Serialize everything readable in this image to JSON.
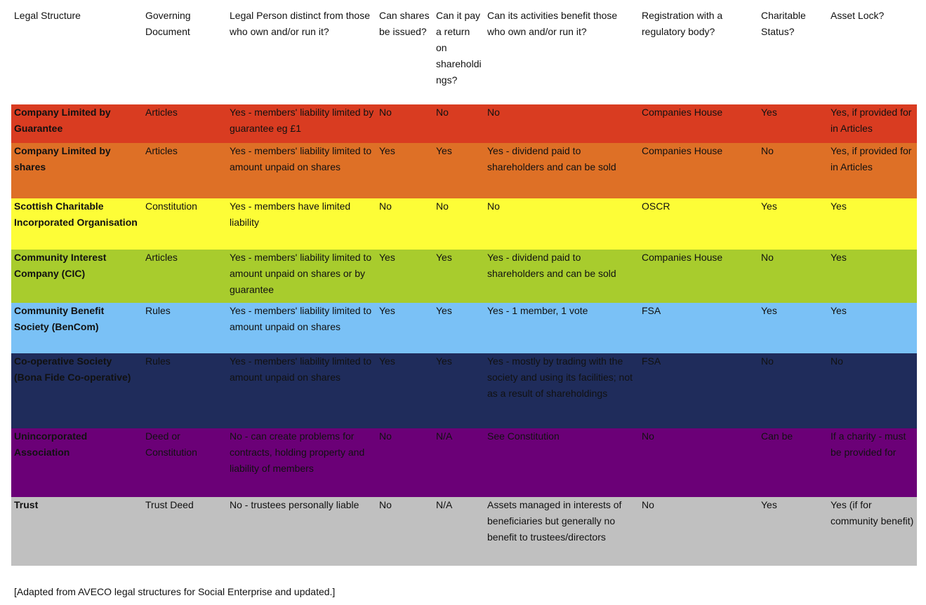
{
  "table": {
    "header": [
      "Legal Structure",
      "Governing Document",
      "Legal Person distinct from those who own and/or run it?",
      "Can shares be issued?",
      "Can it pay a return on shareholdings?",
      "Can its activities benefit those who own and/or run it?",
      "Registration with a regulatory body?",
      "Charitable Status?",
      "Asset Lock?"
    ],
    "rows": [
      [
        "Company Limited by Guarantee",
        "Articles",
        "Yes - members' liability limited by guarantee eg £1",
        "No",
        "No",
        "No",
        "Companies House",
        "Yes",
        "Yes, if provided for in Articles"
      ],
      [
        "Company Limited by shares",
        "Articles",
        "Yes - members' liability limited to amount unpaid on shares",
        "Yes",
        "Yes",
        "Yes - dividend paid to shareholders and can be sold",
        "Companies House",
        "No",
        "Yes, if provided for in Articles"
      ],
      [
        "Scottish Charitable Incorporated Organisation",
        "Constitution",
        "Yes - members have limited liability",
        "No",
        "No",
        "No",
        "OSCR",
        "Yes",
        "Yes"
      ],
      [
        "Community Interest Company (CIC)",
        "Articles",
        "Yes - members' liability limited to amount unpaid on shares or by guarantee",
        "Yes",
        "Yes",
        "Yes - dividend paid to shareholders and can be sold",
        "Companies House",
        "No",
        "Yes"
      ],
      [
        "Community Benefit Society (BenCom)",
        "Rules",
        "Yes - members' liability limited to amount unpaid on shares",
        "Yes",
        "Yes",
        "Yes - 1 member, 1 vote",
        "FSA",
        "Yes",
        "Yes"
      ],
      [
        "Co-operative Society (Bona Fide Co-operative)",
        "Rules",
        "Yes - members' liability limited to amount unpaid on shares",
        "Yes",
        "Yes",
        "Yes - mostly by trading with the society and using its facilities; not as a result of shareholdings",
        "FSA",
        "No",
        "No"
      ],
      [
        "Unincorporated Association",
        "Deed or Constitution",
        "No - can create problems for contracts, holding property and liability of members",
        "No",
        "N/A",
        "See Constitution",
        "No",
        "Can be",
        "If a charity - must be provided for"
      ],
      [
        "Trust",
        "Trust Deed",
        "No - trustees personally liable",
        "No",
        "N/A",
        "Assets managed in interests of beneficiaries but generally no benefit to trustees/directors",
        "No",
        "Yes",
        "Yes  (if for community benefit)"
      ]
    ]
  },
  "footnote": "[Adapted from AVECO legal structures for Social Enterprise and updated.]"
}
